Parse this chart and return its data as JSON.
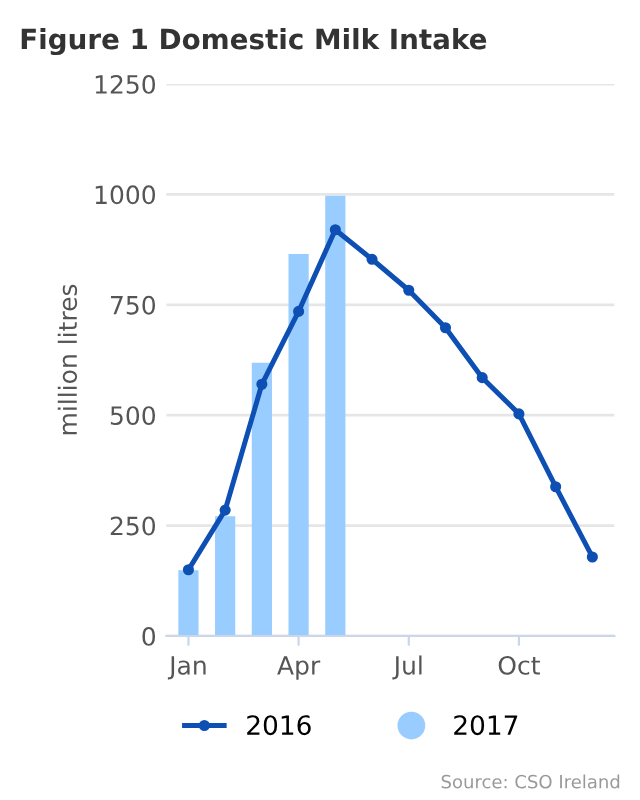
{
  "chart_data": {
    "type": "bar",
    "title": "Figure 1 Domestic Milk Intake",
    "ylabel": "million litres",
    "categories": [
      "Jan",
      null,
      null,
      "Apr",
      null,
      null,
      "Jul",
      null,
      null,
      "Oct",
      null,
      null
    ],
    "series": [
      {
        "name": "2016",
        "type": "line",
        "color": "#0d4fb3",
        "marker": "circle",
        "values": [
          150,
          285,
          570,
          735,
          920,
          853,
          783,
          698,
          585,
          503,
          338,
          179
        ]
      },
      {
        "name": "2017",
        "color": "#99ccff",
        "values": [
          149,
          271,
          619,
          865,
          997,
          null,
          null,
          null,
          null,
          null,
          null,
          null
        ]
      }
    ],
    "ylim": [
      0,
      1250
    ],
    "yticks": [
      0,
      250,
      500,
      750,
      1000,
      1250
    ],
    "grid": "y",
    "legend": "bottom",
    "annotations": [
      "Source: CSO Ireland"
    ]
  }
}
